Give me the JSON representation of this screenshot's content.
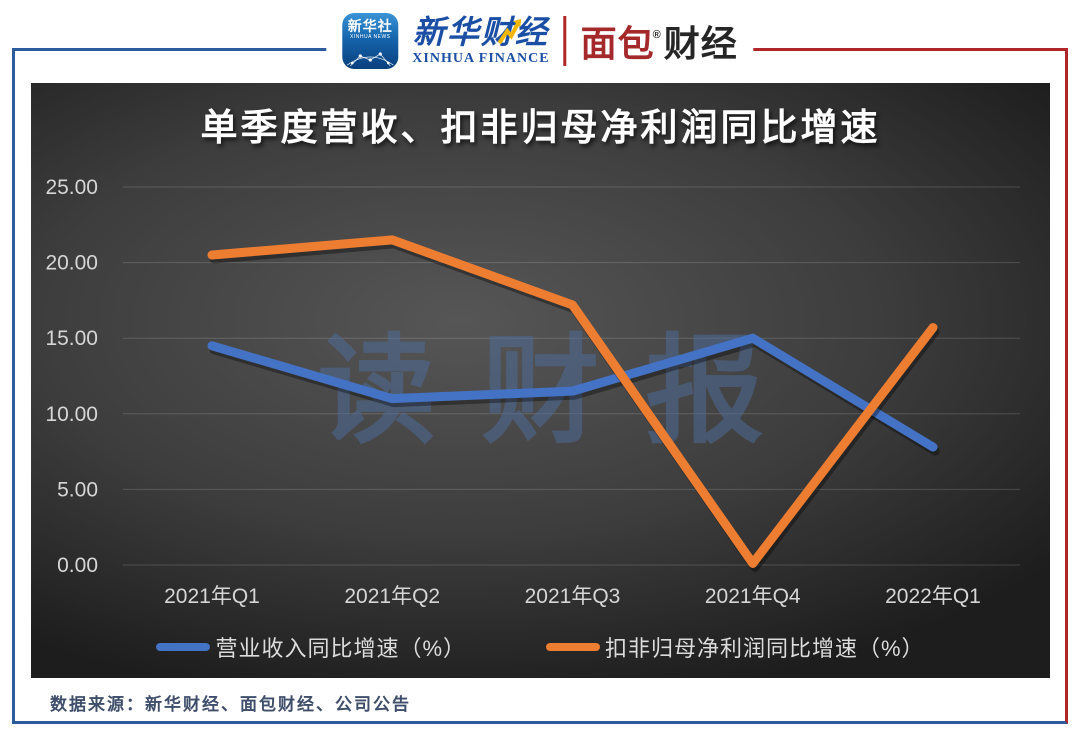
{
  "header": {
    "xinhua_news_icon": {
      "title": "新华社",
      "subtitle": "XINHUA NEWS"
    },
    "xinhua_finance": {
      "cn": "新华财经",
      "en": "XINHUA FINANCE"
    },
    "mianbao": {
      "part1": "面包",
      "reg": "®",
      "part2": "财经"
    }
  },
  "watermark": {
    "text": "读财报"
  },
  "footer": {
    "source": "数据来源：新华财经、面包财经、公司公告"
  },
  "colors": {
    "revenue_line": "#4472C4",
    "profit_line": "#ED7D31",
    "frame_blue": "#2E5A9E",
    "frame_red": "#B02629",
    "gridline": "rgba(255,255,255,0.16)",
    "tick_text": "#D6D6D6"
  },
  "chart_data": {
    "type": "line",
    "title": "单季度营收、扣非归母净利润同比增速",
    "categories": [
      "2021年Q1",
      "2021年Q2",
      "2021年Q3",
      "2021年Q4",
      "2022年Q1"
    ],
    "series": [
      {
        "name": "营业收入同比增速（%）",
        "color": "#4472C4",
        "values": [
          14.5,
          11.0,
          11.5,
          15.0,
          7.8
        ]
      },
      {
        "name": "扣非归母净利润同比增速（%）",
        "color": "#ED7D31",
        "values": [
          20.5,
          21.5,
          17.2,
          0.1,
          15.7
        ]
      }
    ],
    "xlabel": "",
    "ylabel": "",
    "ylim": [
      0,
      25
    ],
    "ytick_step": 5,
    "ytick_labels": [
      "0.00",
      "5.00",
      "10.00",
      "15.00",
      "20.00",
      "25.00"
    ],
    "grid": "horizontal",
    "legend_position": "bottom"
  }
}
